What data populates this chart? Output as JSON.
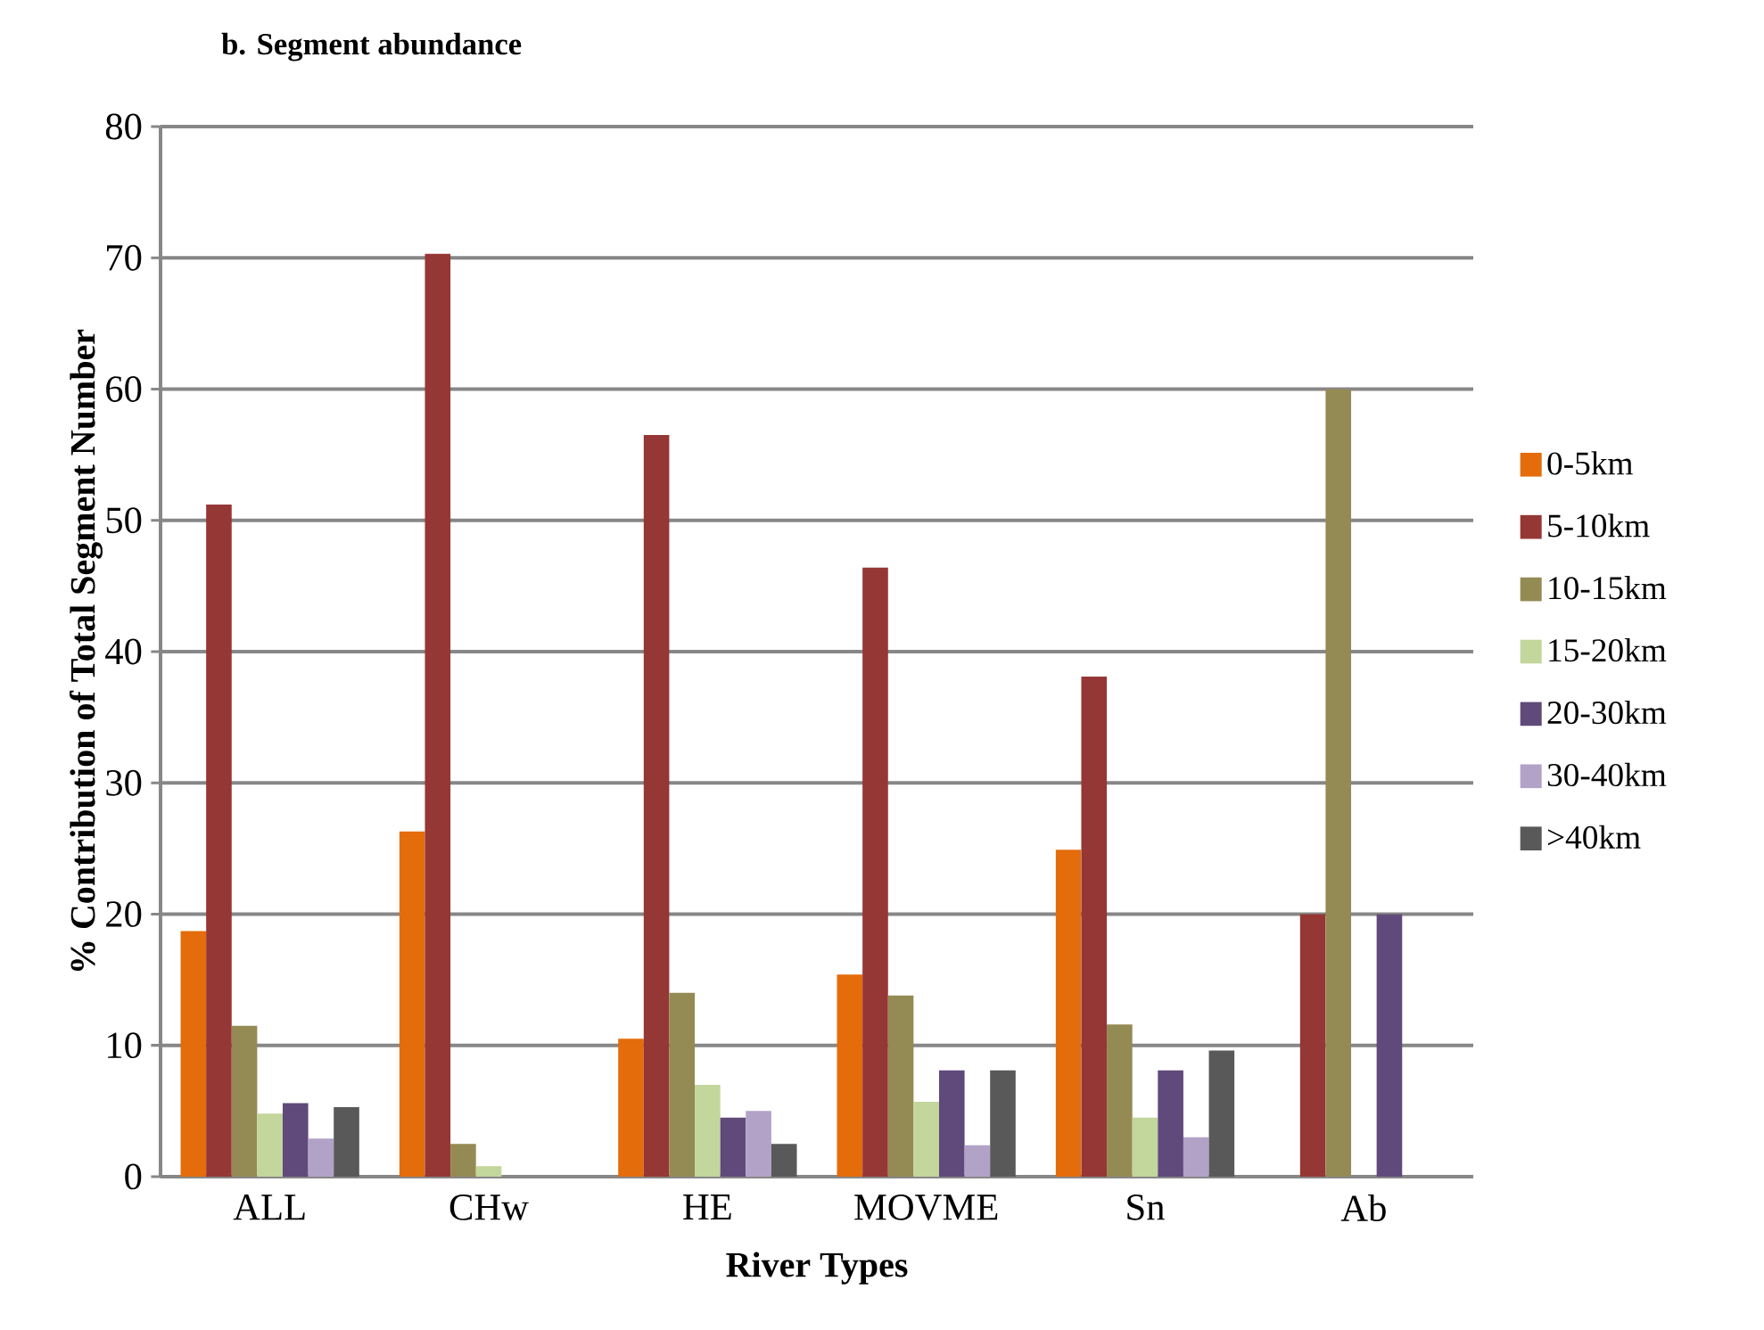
{
  "chart_data": {
    "type": "bar",
    "title": "b.    Segment abundance",
    "xlabel": "River Types",
    "ylabel": "% Contribution of Total Segment Number",
    "categories": [
      "ALL",
      "CHw",
      "HE",
      "MOVME",
      "Sn",
      "Ab"
    ],
    "series": [
      {
        "name": "0-5km",
        "color": "#e46c0a",
        "values": [
          18.7,
          26.3,
          10.5,
          15.4,
          24.9,
          null
        ]
      },
      {
        "name": "5-10km",
        "color": "#953735",
        "values": [
          51.2,
          70.3,
          56.5,
          46.4,
          38.1,
          20
        ]
      },
      {
        "name": "10-15km",
        "color": "#948a54",
        "values": [
          11.5,
          2.5,
          14.0,
          13.8,
          11.6,
          60
        ]
      },
      {
        "name": "15-20km",
        "color": "#c3d69b",
        "values": [
          4.8,
          0.8,
          7.0,
          5.7,
          4.5,
          null
        ]
      },
      {
        "name": "20-30km",
        "color": "#604a7b",
        "values": [
          5.6,
          null,
          4.5,
          8.1,
          8.1,
          20
        ]
      },
      {
        "name": "30-40km",
        "color": "#b3a2c7",
        "values": [
          2.9,
          null,
          5.0,
          2.4,
          3.0,
          null
        ]
      },
      {
        "name": ">40km",
        "color": "#595959",
        "values": [
          5.3,
          null,
          2.5,
          8.1,
          9.6,
          null
        ]
      }
    ],
    "ylim": [
      0,
      80
    ],
    "yticks": [
      0,
      10,
      20,
      30,
      40,
      50,
      60,
      70,
      80
    ],
    "grid": "y",
    "legend": "right"
  }
}
